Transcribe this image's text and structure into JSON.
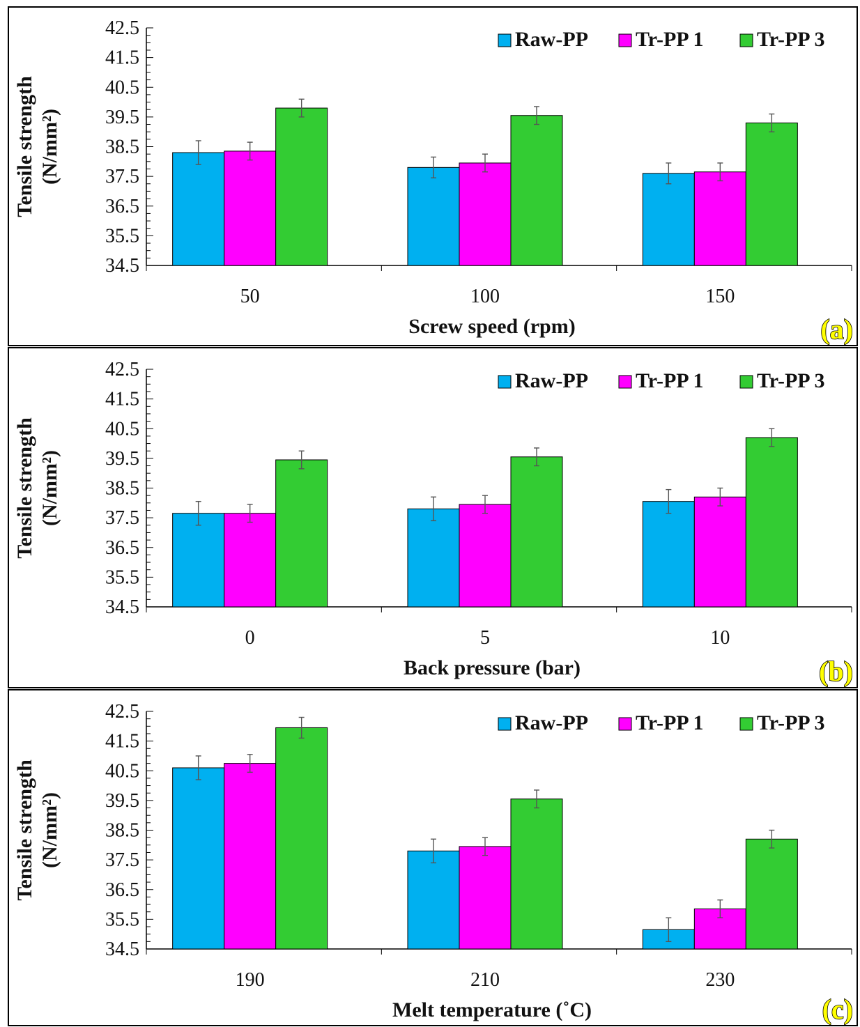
{
  "colors": {
    "Raw-PP": "#00b0f0",
    "Tr-PP 1": "#ff00ff",
    "Tr-PP 3": "#33cc33"
  },
  "chart_data": [
    {
      "type": "bar",
      "panel_tag": "(a)",
      "xlabel": "Screw speed (rpm)",
      "ylabel": [
        "Tensile strength",
        "(N/mm²)"
      ],
      "ylim": [
        34.5,
        42.5
      ],
      "yticks": [
        42.5,
        41.5,
        40.5,
        39.5,
        38.5,
        37.5,
        36.5,
        35.5,
        34.5
      ],
      "categories": [
        "50",
        "100",
        "150"
      ],
      "legend_position": "top-right",
      "series": [
        {
          "name": "Raw-PP",
          "values": [
            38.3,
            37.8,
            37.6
          ],
          "errors": [
            0.4,
            0.35,
            0.35
          ]
        },
        {
          "name": "Tr-PP 1",
          "values": [
            38.35,
            37.95,
            37.65
          ],
          "errors": [
            0.3,
            0.3,
            0.3
          ]
        },
        {
          "name": "Tr-PP 3",
          "values": [
            39.8,
            39.55,
            39.3
          ],
          "errors": [
            0.3,
            0.3,
            0.3
          ]
        }
      ]
    },
    {
      "type": "bar",
      "panel_tag": "(b)",
      "xlabel": "Back pressure (bar)",
      "ylabel": [
        "Tensile strength",
        "(N/mm²)"
      ],
      "ylim": [
        34.5,
        42.5
      ],
      "yticks": [
        42.5,
        41.5,
        40.5,
        39.5,
        38.5,
        37.5,
        36.5,
        35.5,
        34.5
      ],
      "categories": [
        "0",
        "5",
        "10"
      ],
      "legend_position": "top-right",
      "series": [
        {
          "name": "Raw-PP",
          "values": [
            37.65,
            37.8,
            38.05
          ],
          "errors": [
            0.4,
            0.4,
            0.4
          ]
        },
        {
          "name": "Tr-PP 1",
          "values": [
            37.65,
            37.95,
            38.2
          ],
          "errors": [
            0.3,
            0.3,
            0.3
          ]
        },
        {
          "name": "Tr-PP 3",
          "values": [
            39.45,
            39.55,
            40.2
          ],
          "errors": [
            0.3,
            0.3,
            0.3
          ]
        }
      ]
    },
    {
      "type": "bar",
      "panel_tag": "(c)",
      "xlabel": "Melt temperature (˚C)",
      "ylabel": [
        "Tensile strength",
        "(N/mm²)"
      ],
      "ylim": [
        34.5,
        42.5
      ],
      "yticks": [
        42.5,
        41.5,
        40.5,
        39.5,
        38.5,
        37.5,
        36.5,
        35.5,
        34.5
      ],
      "categories": [
        "190",
        "210",
        "230"
      ],
      "legend_position": "top-right",
      "series": [
        {
          "name": "Raw-PP",
          "values": [
            40.6,
            37.8,
            35.15
          ],
          "errors": [
            0.4,
            0.4,
            0.4
          ]
        },
        {
          "name": "Tr-PP 1",
          "values": [
            40.75,
            37.95,
            35.85
          ],
          "errors": [
            0.3,
            0.3,
            0.3
          ]
        },
        {
          "name": "Tr-PP 3",
          "values": [
            41.95,
            39.55,
            38.2
          ],
          "errors": [
            0.35,
            0.3,
            0.3
          ]
        }
      ]
    }
  ]
}
